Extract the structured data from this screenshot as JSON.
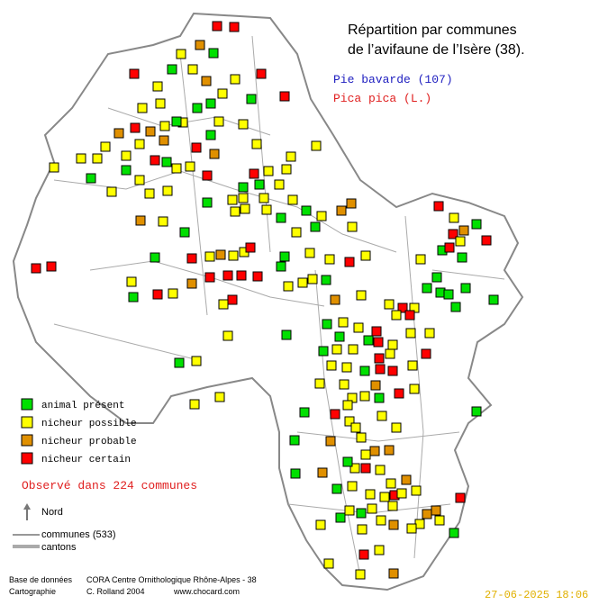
{
  "header": {
    "title_lines": [
      "Répartition par communes",
      "de l’avifaune de l’Isère (38)."
    ],
    "species_common": "Pie bavarde  (107)",
    "species_latin": "Pica pica (L.)"
  },
  "legend": {
    "items": [
      {
        "label": "animal présent",
        "color": "#00e000"
      },
      {
        "label": "nicheur possible",
        "color": "#ffff00"
      },
      {
        "label": "nicheur probable",
        "color": "#e09000"
      },
      {
        "label": "nicheur certain",
        "color": "#ff0000"
      }
    ]
  },
  "observed": "Observé dans 224 communes",
  "north": "Nord",
  "boundaries": {
    "communes": "communes (533)",
    "cantons": "cantons"
  },
  "footer": {
    "database_label": "Base de données",
    "database": "CORA Centre Ornithologique Rhône-Alpes - 38",
    "mapping_label": "Cartographie",
    "author": "C. Rolland 2004",
    "website": "www.chocard.com",
    "date": "27-06-2025 18:06"
  }
}
